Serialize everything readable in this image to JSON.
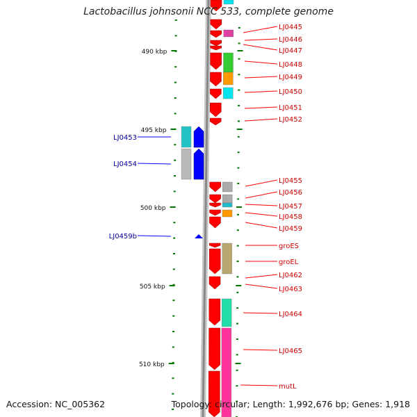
{
  "title": "Lactobacillus johnsonii NCC 533, complete genome",
  "footer": {
    "accession": "Accession: NC_005362",
    "summary": "Topology: circular; Length: 1,992,676 bp; Genes: 1,918"
  },
  "colors": {
    "forward_gene": "#ff0000",
    "reverse_gene": "#0000ff",
    "forward_label": "#cc0000",
    "reverse_label": "#000099",
    "tick": "#007700",
    "backbone": "#888888"
  },
  "scale": {
    "unit": "kbp",
    "labels": [
      "490 kbp",
      "495 kbp",
      "500 kbp",
      "505 kbp",
      "510 kbp"
    ]
  },
  "forward_genes": [
    {
      "label": "LJ0445"
    },
    {
      "label": "LJ0446"
    },
    {
      "label": "LJ0447"
    },
    {
      "label": "LJ0448"
    },
    {
      "label": "LJ0449"
    },
    {
      "label": "LJ0450"
    },
    {
      "label": "LJ0451"
    },
    {
      "label": "LJ0452"
    },
    {
      "label": "LJ0455"
    },
    {
      "label": "LJ0456"
    },
    {
      "label": "LJ0457"
    },
    {
      "label": "LJ0458"
    },
    {
      "label": "LJ0459"
    },
    {
      "label": "groES"
    },
    {
      "label": "groEL"
    },
    {
      "label": "LJ0462"
    },
    {
      "label": "LJ0463"
    },
    {
      "label": "LJ0464"
    },
    {
      "label": "LJ0465"
    },
    {
      "label": "mutL"
    }
  ],
  "reverse_genes": [
    {
      "label": "LJ0453"
    },
    {
      "label": "LJ0454"
    },
    {
      "label": "LJ0459b"
    }
  ]
}
